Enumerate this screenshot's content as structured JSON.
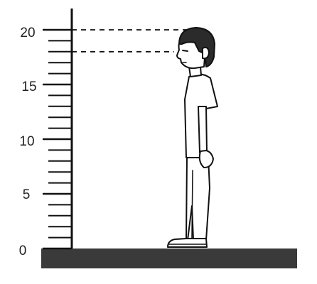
{
  "scale": {
    "labels": [
      "0",
      "5",
      "10",
      "15",
      "20"
    ],
    "min": 0,
    "max": 20,
    "major_step": 5,
    "minor_step": 1
  },
  "marks": {
    "head_top": 20,
    "eye_level": 18
  },
  "colors": {
    "ink": "#111111",
    "ground": "#3a3a3a"
  }
}
